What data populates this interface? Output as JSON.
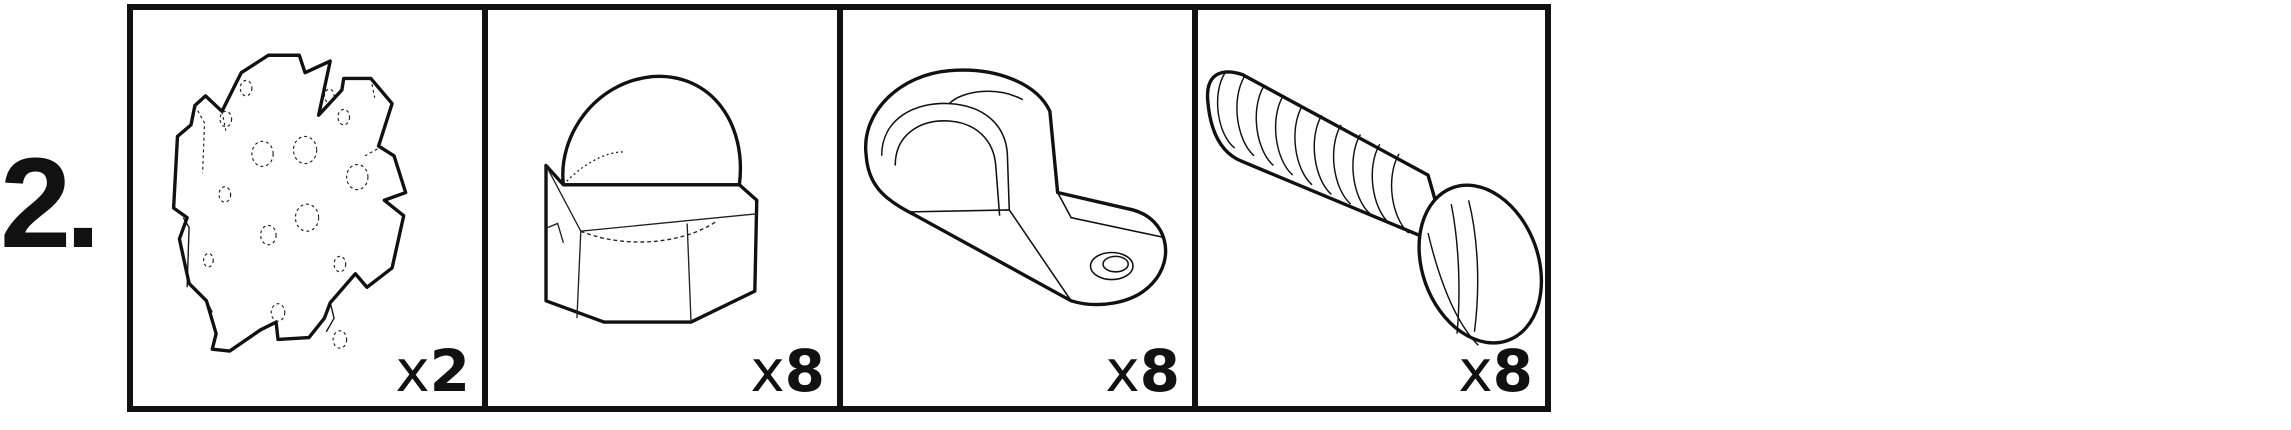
{
  "step": {
    "label": "2."
  },
  "parts": [
    {
      "icon": "star-washer-icon",
      "qty_prefix": "x",
      "qty_value": "2"
    },
    {
      "icon": "acorn-nut-icon",
      "qty_prefix": "x",
      "qty_value": "8"
    },
    {
      "icon": "p-clip-icon",
      "qty_prefix": "x",
      "qty_value": "8"
    },
    {
      "icon": "slotted-screw-icon",
      "qty_prefix": "x",
      "qty_value": "8"
    }
  ]
}
